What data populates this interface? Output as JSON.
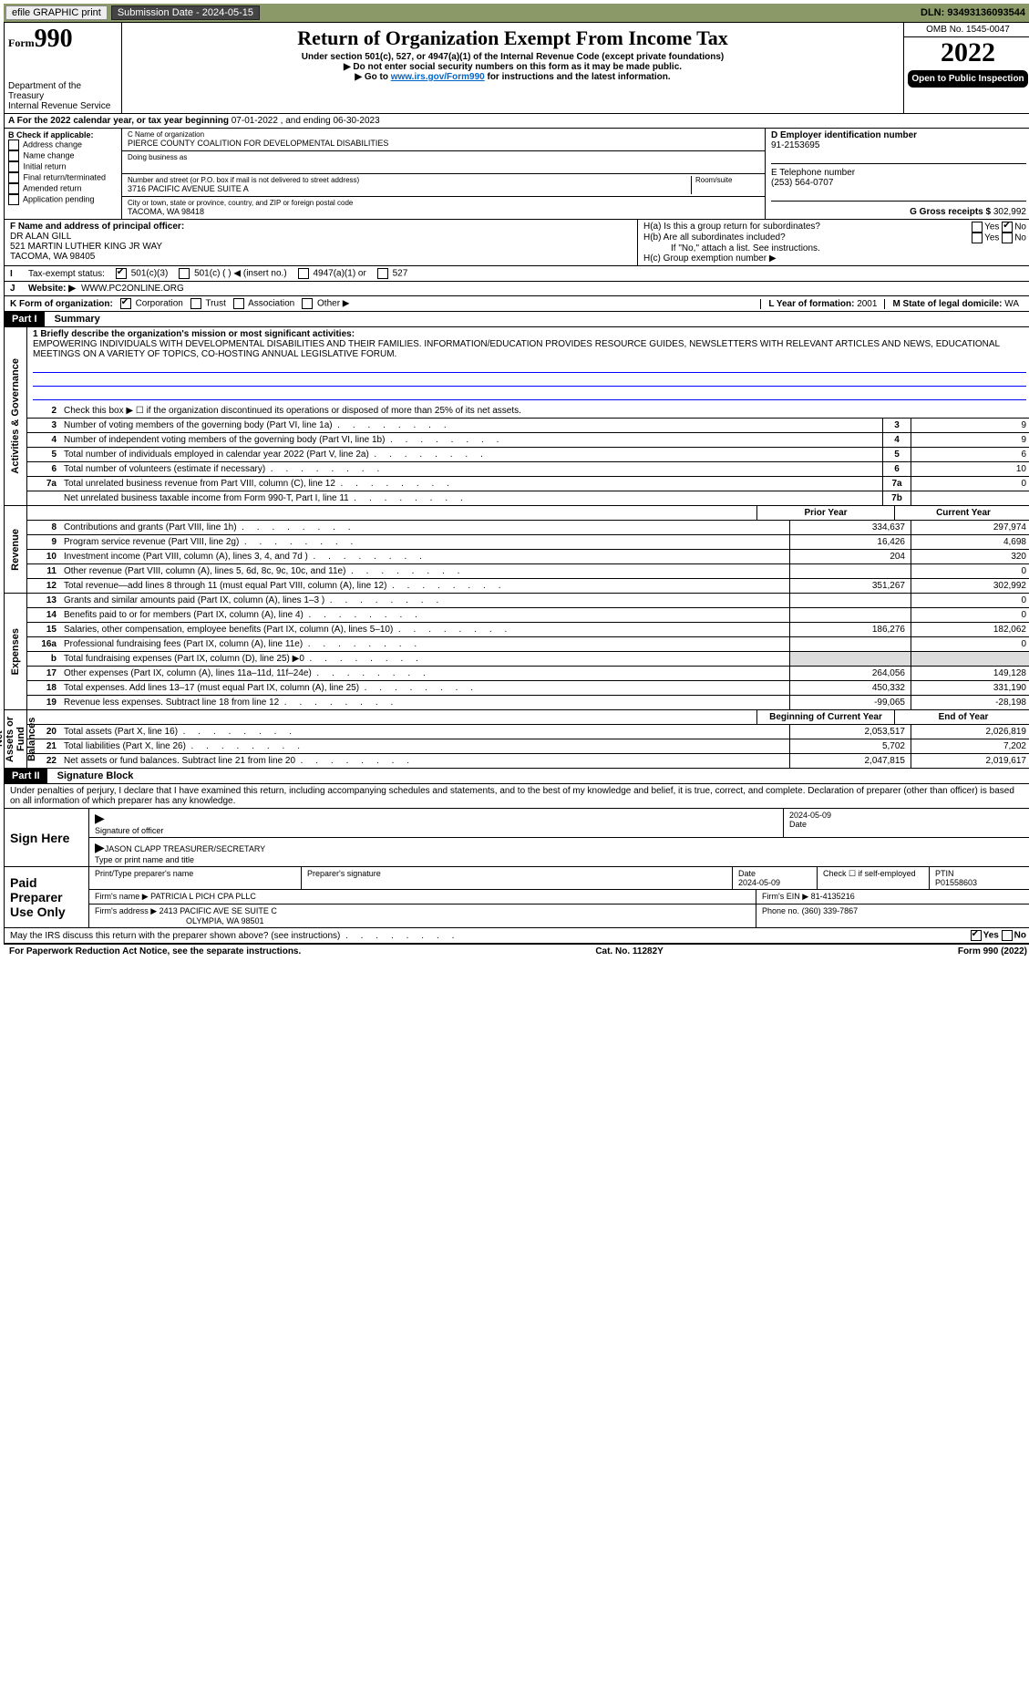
{
  "topbar": {
    "efile": "efile GRAPHIC print",
    "submission": "Submission Date - 2024-05-15",
    "dln": "DLN: 93493136093544"
  },
  "header": {
    "form_prefix": "Form",
    "form_num": "990",
    "dept1": "Department of the Treasury",
    "dept2": "Internal Revenue Service",
    "title": "Return of Organization Exempt From Income Tax",
    "sub1": "Under section 501(c), 527, or 4947(a)(1) of the Internal Revenue Code (except private foundations)",
    "sub2": "▶ Do not enter social security numbers on this form as it may be made public.",
    "sub3_pre": "▶ Go to ",
    "sub3_link": "www.irs.gov/Form990",
    "sub3_post": " for instructions and the latest information.",
    "omb": "OMB No. 1545-0047",
    "year": "2022",
    "inspect": "Open to Public Inspection"
  },
  "rowA": {
    "label_pre": "A For the 2022 calendar year, or tax year beginning ",
    "begin": "07-01-2022",
    "mid": " , and ending ",
    "end": "06-30-2023"
  },
  "boxB": {
    "label": "B Check if applicable:",
    "items": [
      "Address change",
      "Name change",
      "Initial return",
      "Final return/terminated",
      "Amended return",
      "Application pending"
    ]
  },
  "boxC": {
    "name_lab": "C Name of organization",
    "name": "PIERCE COUNTY COALITION FOR DEVELOPMENTAL DISABILITIES",
    "dba_lab": "Doing business as",
    "dba": "",
    "street_lab": "Number and street (or P.O. box if mail is not delivered to street address)",
    "room_lab": "Room/suite",
    "street": "3716 PACIFIC AVENUE SUITE A",
    "city_lab": "City or town, state or province, country, and ZIP or foreign postal code",
    "city": "TACOMA, WA  98418"
  },
  "boxD": {
    "label": "D Employer identification number",
    "val": "91-2153695"
  },
  "boxE": {
    "label": "E Telephone number",
    "val": "(253) 564-0707"
  },
  "boxG": {
    "label": "G Gross receipts $",
    "val": "302,992"
  },
  "boxF": {
    "label": "F Name and address of principal officer:",
    "name": "DR ALAN GILL",
    "addr1": "521 MARTIN LUTHER KING JR WAY",
    "addr2": "TACOMA, WA  98405"
  },
  "boxH": {
    "a": "H(a)  Is this a group return for subordinates?",
    "b": "H(b)  Are all subordinates included?",
    "b_note": "If \"No,\" attach a list. See instructions.",
    "c": "H(c)  Group exemption number ▶",
    "yes": "Yes",
    "no": "No"
  },
  "boxI": {
    "label": "Tax-exempt status:",
    "opts": [
      "501(c)(3)",
      "501(c) (  ) ◀ (insert no.)",
      "4947(a)(1) or",
      "527"
    ]
  },
  "boxJ": {
    "label": "J",
    "text": "Website: ▶",
    "val": "WWW.PC2ONLINE.ORG"
  },
  "boxK": {
    "label": "K Form of organization:",
    "opts": [
      "Corporation",
      "Trust",
      "Association",
      "Other ▶"
    ]
  },
  "boxL": {
    "label": "L Year of formation:",
    "val": "2001"
  },
  "boxM": {
    "label": "M State of legal domicile:",
    "val": "WA"
  },
  "part1": {
    "hdr": "Part I",
    "title": "Summary",
    "l1_lab": "1  Briefly describe the organization's mission or most significant activities:",
    "l1_txt": "EMPOWERING INDIVIDUALS WITH DEVELOPMENTAL DISABILITIES AND THEIR FAMILIES. INFORMATION/EDUCATION PROVIDES RESOURCE GUIDES, NEWSLETTERS WITH RELEVANT ARTICLES AND NEWS, EDUCATIONAL MEETINGS ON A VARIETY OF TOPICS, CO-HOSTING ANNUAL LEGISLATIVE FORUM.",
    "l2": "Check this box ▶ ☐ if the organization discontinued its operations or disposed of more than 25% of its net assets.",
    "side_ag": "Activities & Governance",
    "side_rev": "Revenue",
    "side_exp": "Expenses",
    "side_na": "Net Assets or Fund Balances",
    "prior": "Prior Year",
    "current": "Current Year",
    "begin": "Beginning of Current Year",
    "endyr": "End of Year",
    "lines_ag": [
      {
        "n": "3",
        "t": "Number of voting members of the governing body (Part VI, line 1a)",
        "box": "3",
        "v": "9"
      },
      {
        "n": "4",
        "t": "Number of independent voting members of the governing body (Part VI, line 1b)",
        "box": "4",
        "v": "9"
      },
      {
        "n": "5",
        "t": "Total number of individuals employed in calendar year 2022 (Part V, line 2a)",
        "box": "5",
        "v": "6"
      },
      {
        "n": "6",
        "t": "Total number of volunteers (estimate if necessary)",
        "box": "6",
        "v": "10"
      },
      {
        "n": "7a",
        "t": "Total unrelated business revenue from Part VIII, column (C), line 12",
        "box": "7a",
        "v": "0"
      },
      {
        "n": "",
        "t": "Net unrelated business taxable income from Form 990-T, Part I, line 11",
        "box": "7b",
        "v": ""
      }
    ],
    "lines_rev": [
      {
        "n": "8",
        "t": "Contributions and grants (Part VIII, line 1h)",
        "p": "334,637",
        "c": "297,974"
      },
      {
        "n": "9",
        "t": "Program service revenue (Part VIII, line 2g)",
        "p": "16,426",
        "c": "4,698"
      },
      {
        "n": "10",
        "t": "Investment income (Part VIII, column (A), lines 3, 4, and 7d )",
        "p": "204",
        "c": "320"
      },
      {
        "n": "11",
        "t": "Other revenue (Part VIII, column (A), lines 5, 6d, 8c, 9c, 10c, and 11e)",
        "p": "",
        "c": "0"
      },
      {
        "n": "12",
        "t": "Total revenue—add lines 8 through 11 (must equal Part VIII, column (A), line 12)",
        "p": "351,267",
        "c": "302,992"
      }
    ],
    "lines_exp": [
      {
        "n": "13",
        "t": "Grants and similar amounts paid (Part IX, column (A), lines 1–3 )",
        "p": "",
        "c": "0"
      },
      {
        "n": "14",
        "t": "Benefits paid to or for members (Part IX, column (A), line 4)",
        "p": "",
        "c": "0"
      },
      {
        "n": "15",
        "t": "Salaries, other compensation, employee benefits (Part IX, column (A), lines 5–10)",
        "p": "186,276",
        "c": "182,062"
      },
      {
        "n": "16a",
        "t": "Professional fundraising fees (Part IX, column (A), line 11e)",
        "p": "",
        "c": "0"
      },
      {
        "n": "b",
        "t": "Total fundraising expenses (Part IX, column (D), line 25) ▶0",
        "p": "shade",
        "c": "shade"
      },
      {
        "n": "17",
        "t": "Other expenses (Part IX, column (A), lines 11a–11d, 11f–24e)",
        "p": "264,056",
        "c": "149,128"
      },
      {
        "n": "18",
        "t": "Total expenses. Add lines 13–17 (must equal Part IX, column (A), line 25)",
        "p": "450,332",
        "c": "331,190"
      },
      {
        "n": "19",
        "t": "Revenue less expenses. Subtract line 18 from line 12",
        "p": "-99,065",
        "c": "-28,198"
      }
    ],
    "lines_na": [
      {
        "n": "20",
        "t": "Total assets (Part X, line 16)",
        "p": "2,053,517",
        "c": "2,026,819"
      },
      {
        "n": "21",
        "t": "Total liabilities (Part X, line 26)",
        "p": "5,702",
        "c": "7,202"
      },
      {
        "n": "22",
        "t": "Net assets or fund balances. Subtract line 21 from line 20",
        "p": "2,047,815",
        "c": "2,019,617"
      }
    ]
  },
  "part2": {
    "hdr": "Part II",
    "title": "Signature Block",
    "decl": "Under penalties of perjury, I declare that I have examined this return, including accompanying schedules and statements, and to the best of my knowledge and belief, it is true, correct, and complete. Declaration of preparer (other than officer) is based on all information of which preparer has any knowledge.",
    "sign_here": "Sign Here",
    "sig_officer_lab": "Signature of officer",
    "sig_date": "2024-05-09",
    "date_lab": "Date",
    "typed_name": "JASON CLAPP  TREASURER/SECRETARY",
    "typed_lab": "Type or print name and title",
    "paid": "Paid Preparer Use Only",
    "prep_name_lab": "Print/Type preparer's name",
    "prep_sig_lab": "Preparer's signature",
    "prep_date_lab": "Date",
    "prep_date": "2024-05-09",
    "check_self": "Check ☐ if self-employed",
    "ptin_lab": "PTIN",
    "ptin": "P01558603",
    "firm_name_lab": "Firm's name    ▶",
    "firm_name": "PATRICIA L PICH CPA PLLC",
    "firm_ein_lab": "Firm's EIN ▶",
    "firm_ein": "81-4135216",
    "firm_addr_lab": "Firm's address ▶",
    "firm_addr1": "2413 PACIFIC AVE SE SUITE C",
    "firm_addr2": "OLYMPIA, WA  98501",
    "phone_lab": "Phone no.",
    "phone": "(360) 339-7867",
    "discuss": "May the IRS discuss this return with the preparer shown above? (see instructions)",
    "yes": "Yes",
    "no": "No"
  },
  "footer": {
    "pra": "For Paperwork Reduction Act Notice, see the separate instructions.",
    "cat": "Cat. No. 11282Y",
    "form": "Form 990 (2022)"
  }
}
